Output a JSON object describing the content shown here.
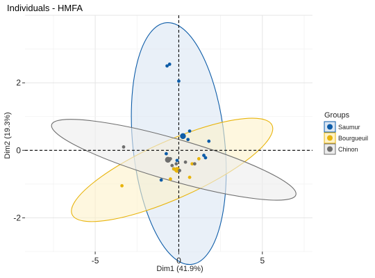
{
  "chart_data": {
    "type": "scatter",
    "title": "Individuals - HMFA",
    "xlabel": "Dim1 (41.9%)",
    "ylabel": "Dim2 (19.3%)",
    "xlim": [
      -9.2,
      8.0
    ],
    "ylim": [
      -3.0,
      4.0
    ],
    "x_ticks": [
      -5,
      0,
      5
    ],
    "y_ticks": [
      -2,
      0,
      2
    ],
    "grid": true,
    "legend": {
      "title": "Groups",
      "position": "right"
    },
    "series": [
      {
        "name": "Saumur",
        "color": "#0d5ca8",
        "fill": "#dbe6f3",
        "centroid": [
          0.25,
          0.42
        ],
        "ellipse": {
          "center": [
            0.0,
            0.2
          ],
          "rx": 2.75,
          "ry": 3.6,
          "angle_deg": 6
        },
        "points": [
          [
            -0.7,
            2.5
          ],
          [
            -0.55,
            2.55
          ],
          [
            0.0,
            2.05
          ],
          [
            0.65,
            0.57
          ],
          [
            1.8,
            0.27
          ],
          [
            0.55,
            0.32
          ],
          [
            -0.75,
            -0.1
          ],
          [
            1.6,
            -0.22
          ],
          [
            1.5,
            -0.15
          ],
          [
            -1.05,
            -0.88
          ],
          [
            -0.3,
            -0.55
          ],
          [
            -0.1,
            -0.3
          ]
        ]
      },
      {
        "name": "Bourgueuil",
        "color": "#e8b40c",
        "fill": "#fdf2c9",
        "centroid": [
          -0.1,
          -0.58
        ],
        "ellipse": {
          "center": [
            -0.4,
            -0.58
          ],
          "rx": 6.55,
          "ry": 0.85,
          "angle_deg": 24
        },
        "points": [
          [
            -3.4,
            -1.05
          ],
          [
            -0.5,
            -0.85
          ],
          [
            0.65,
            -0.8
          ],
          [
            1.2,
            -0.25
          ],
          [
            0.8,
            -0.4
          ],
          [
            0.95,
            -0.4
          ],
          [
            -0.3,
            -0.55
          ]
        ]
      },
      {
        "name": "Chinon",
        "color": "#6e6e6e",
        "fill": "#ececec",
        "centroid": [
          -0.65,
          -0.28
        ],
        "ellipse": {
          "center": [
            -0.3,
            -0.28
          ],
          "rx": 7.6,
          "ry": 0.62,
          "angle_deg": -16
        },
        "points": [
          [
            -3.3,
            0.1
          ],
          [
            -0.4,
            -0.45
          ],
          [
            -0.15,
            -0.4
          ],
          [
            0.4,
            -0.35
          ],
          [
            0.95,
            -0.4
          ],
          [
            0.05,
            -0.6
          ],
          [
            -0.5,
            -0.25
          ]
        ]
      }
    ]
  }
}
